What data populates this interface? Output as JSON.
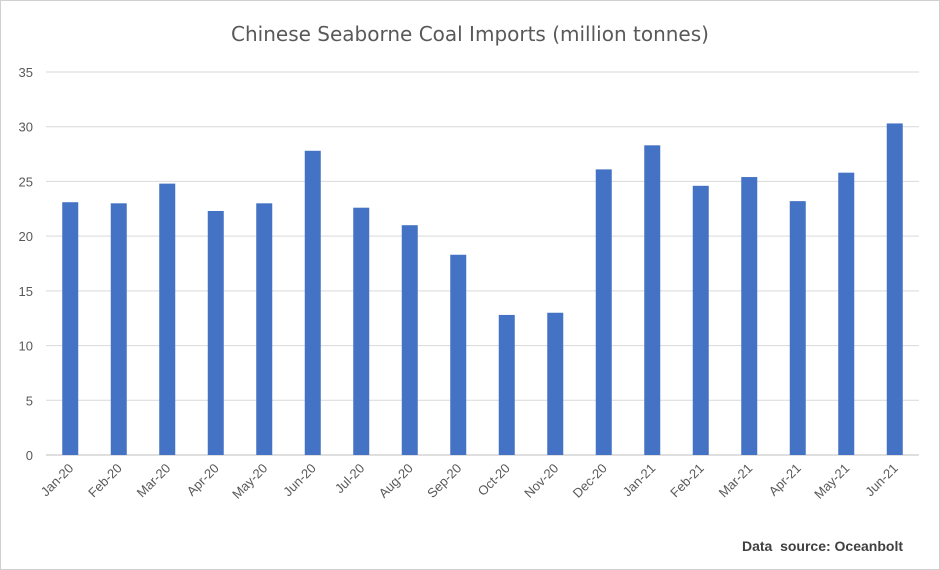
{
  "chart_data": {
    "type": "bar",
    "title": "Chinese Seaborne Coal Imports (million tonnes)",
    "xlabel": "",
    "ylabel": "",
    "categories": [
      "Jan-20",
      "Feb-20",
      "Mar-20",
      "Apr-20",
      "May-20",
      "Jun-20",
      "Jul-20",
      "Aug-20",
      "Sep-20",
      "Oct-20",
      "Nov-20",
      "Dec-20",
      "Jan-21",
      "Feb-21",
      "Mar-21",
      "Apr-21",
      "May-21",
      "Jun-21"
    ],
    "values": [
      23.1,
      23.0,
      24.8,
      22.3,
      23.0,
      27.8,
      22.6,
      21.0,
      18.3,
      12.8,
      13.0,
      26.1,
      28.3,
      24.6,
      25.4,
      23.2,
      25.8,
      30.3
    ],
    "ylim": [
      0,
      35
    ],
    "yticks": [
      0,
      5,
      10,
      15,
      20,
      25,
      30,
      35
    ],
    "grid": true,
    "legend": "none",
    "bar_color": "#4472c4",
    "grid_color": "#d9d9d9",
    "source_note": "Data  source: Oceanbolt"
  }
}
